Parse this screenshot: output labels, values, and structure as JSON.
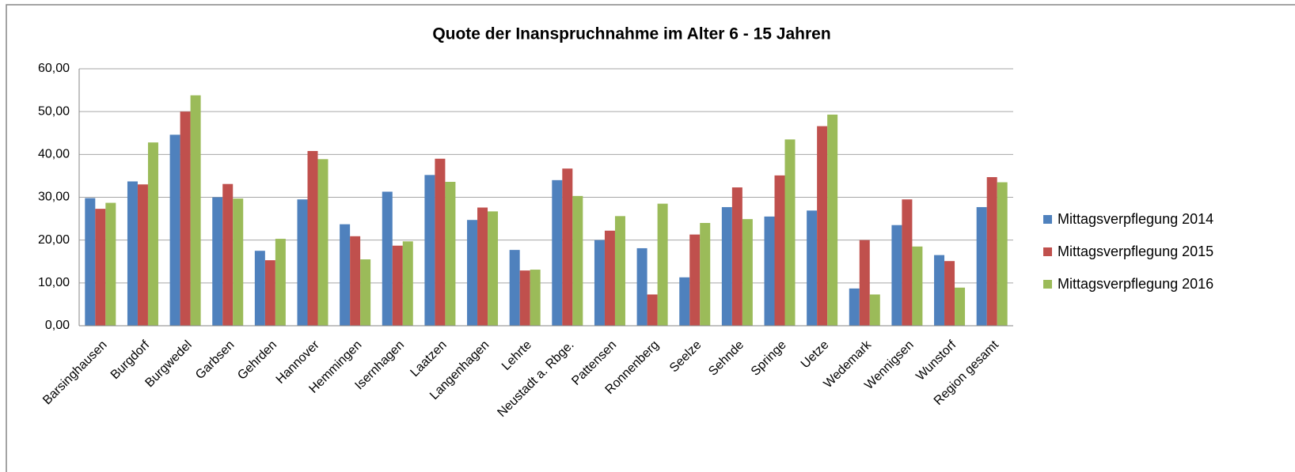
{
  "chart_data": {
    "type": "bar",
    "title": "Quote der Inanspruchnahme  im Alter 6 - 15 Jahren",
    "categories": [
      "Barsinghausen",
      "Burgdorf",
      "Burgwedel",
      "Garbsen",
      "Gehrden",
      "Hannover",
      "Hemmingen",
      "Isernhagen",
      "Laatzen",
      "Langenhagen",
      "Lehrte",
      "Neustadt a. Rbge.",
      "Pattensen",
      "Ronnenberg",
      "Seelze",
      "Sehnde",
      "Springe",
      "Uetze",
      "Wedemark",
      "Wennigsen",
      "Wunstorf",
      "Region gesamt"
    ],
    "series": [
      {
        "name": "Mittagsverpflegung 2014",
        "color": "#4f81bd",
        "values": [
          29.8,
          33.7,
          44.6,
          30.0,
          17.5,
          29.5,
          23.7,
          31.3,
          35.2,
          24.7,
          17.7,
          34.0,
          20.0,
          18.1,
          11.3,
          27.7,
          25.5,
          26.9,
          8.7,
          23.5,
          16.5,
          27.7
        ]
      },
      {
        "name": "Mittagsverpflegung 2015",
        "color": "#c0504d",
        "values": [
          27.3,
          33.0,
          50.0,
          33.1,
          15.3,
          40.8,
          20.9,
          18.7,
          39.0,
          27.6,
          12.9,
          36.7,
          22.2,
          7.3,
          21.3,
          32.3,
          35.1,
          46.6,
          20.0,
          29.5,
          15.1,
          34.7
        ]
      },
      {
        "name": "Mittagsverpflegung 2016",
        "color": "#9bbb59",
        "values": [
          28.7,
          42.8,
          53.8,
          29.7,
          20.3,
          38.9,
          15.5,
          19.7,
          33.6,
          26.7,
          13.1,
          30.3,
          25.6,
          28.5,
          24.0,
          24.9,
          43.5,
          49.3,
          7.3,
          18.5,
          8.9,
          33.5
        ]
      }
    ],
    "ylim": [
      0,
      60
    ],
    "yticks": [
      {
        "value": 0,
        "label": "0,00"
      },
      {
        "value": 10,
        "label": "10,00"
      },
      {
        "value": 20,
        "label": "20,00"
      },
      {
        "value": 30,
        "label": "30,00"
      },
      {
        "value": 40,
        "label": "40,00"
      },
      {
        "value": 50,
        "label": "50,00"
      },
      {
        "value": 60,
        "label": "60,00"
      }
    ],
    "grid": true,
    "legend": "right"
  }
}
